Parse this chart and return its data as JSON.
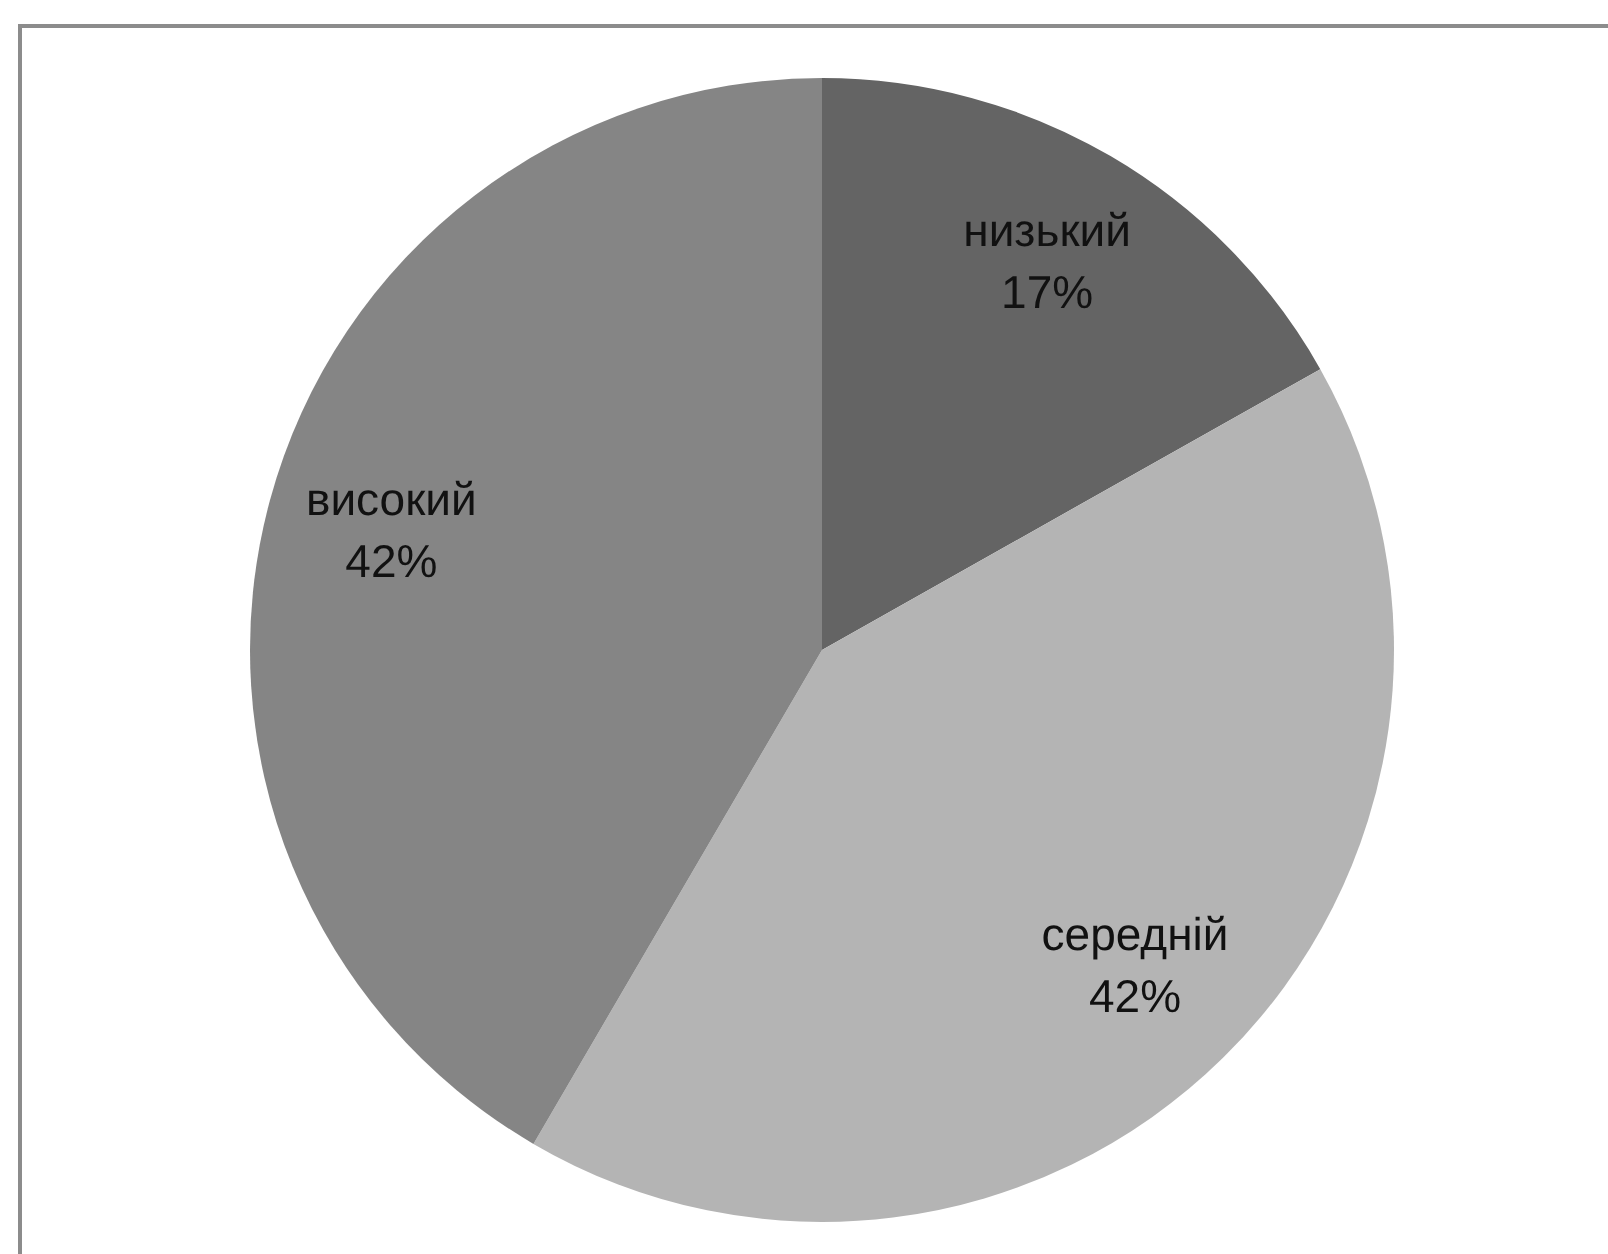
{
  "chart_data": {
    "type": "pie",
    "categories": [
      "низький",
      "середній",
      "високий"
    ],
    "values": [
      17,
      42,
      42
    ],
    "value_labels": [
      "17%",
      "42%",
      "42%"
    ],
    "colors": [
      "#646464",
      "#b4b4b4",
      "#858585"
    ],
    "legend": false
  }
}
